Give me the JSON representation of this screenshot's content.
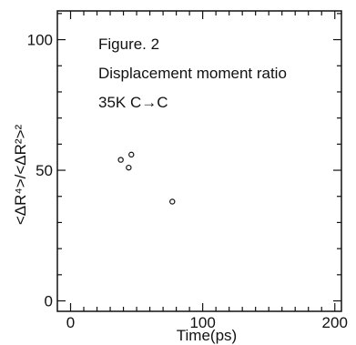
{
  "chart_data": {
    "type": "scatter",
    "annotations": [
      "Figure. 2",
      "Displacement moment ratio",
      "35K C→C"
    ],
    "xlabel": "Time(ps)",
    "ylabel": "<ΔR⁴>/<ΔR²>²",
    "xlim": [
      -10,
      205
    ],
    "ylim": [
      -4,
      111
    ],
    "x_ticks": [
      0,
      100,
      200
    ],
    "x_tick_labels": [
      "0",
      "100",
      "200"
    ],
    "y_ticks": [
      0,
      50,
      100
    ],
    "y_tick_labels": [
      "0",
      "50",
      "100"
    ],
    "x_minor_step": 10,
    "y_minor_step": 10,
    "grid": false,
    "series": [
      {
        "points": [
          {
            "x": 38,
            "y": 54
          },
          {
            "x": 44,
            "y": 51
          },
          {
            "x": 46,
            "y": 56
          },
          {
            "x": 77,
            "y": 38
          }
        ]
      }
    ]
  }
}
